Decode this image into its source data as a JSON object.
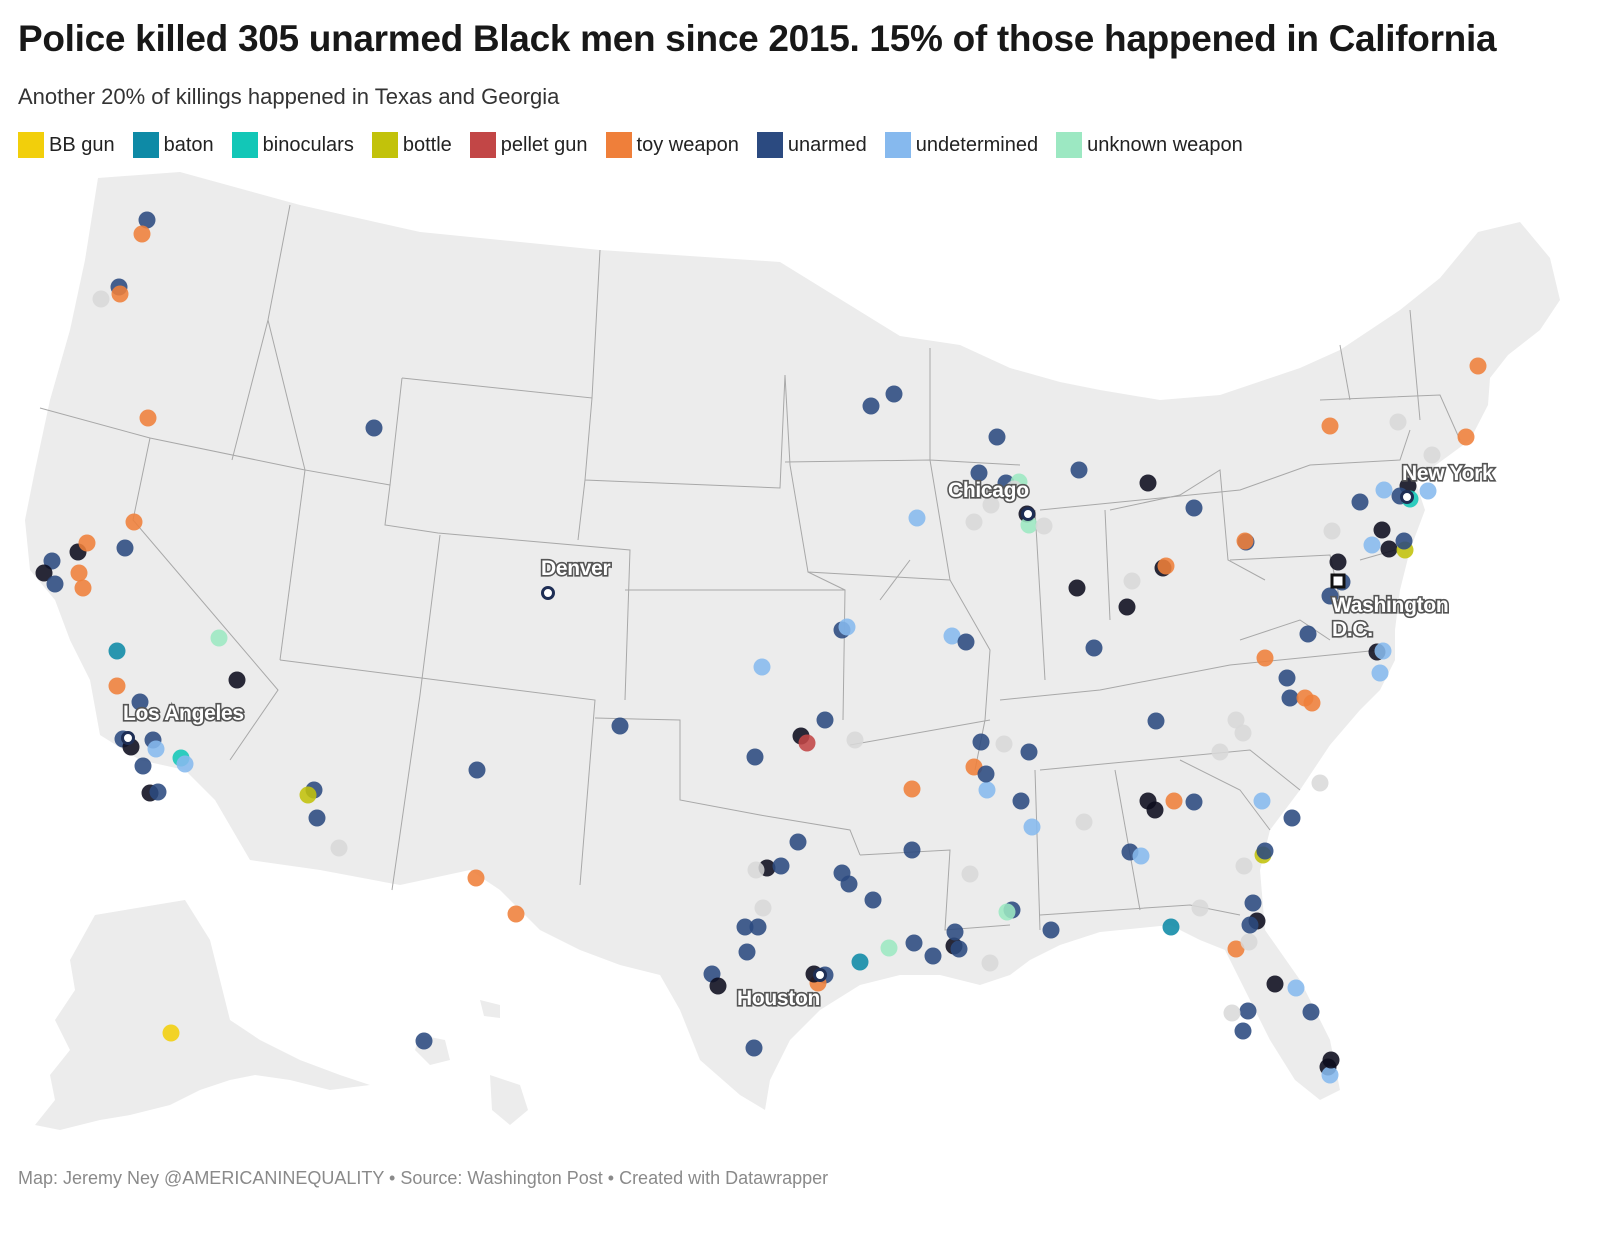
{
  "header": {
    "title": "Police killed 305 unarmed Black men since 2015. 15% of those happened in California",
    "subtitle": "Another 20% of killings happened in Texas and Georgia"
  },
  "legend": [
    {
      "label": "BB gun",
      "color": "#f2cf0b"
    },
    {
      "label": "baton",
      "color": "#0e8aa6"
    },
    {
      "label": "binoculars",
      "color": "#12c7b7"
    },
    {
      "label": "bottle",
      "color": "#c2c20a"
    },
    {
      "label": "pellet gun",
      "color": "#c24646"
    },
    {
      "label": "toy weapon",
      "color": "#ef7f3a"
    },
    {
      "label": "unarmed",
      "color": "#2b4a80"
    },
    {
      "label": "undetermined",
      "color": "#86b9ee"
    },
    {
      "label": "unknown weapon",
      "color": "#9ce8c2"
    }
  ],
  "map": {
    "cities": [
      "Chicago",
      "New York",
      "Denver",
      "Washington",
      "D.C.",
      "Los Angeles",
      "Houston"
    ],
    "base_color": "#ececec",
    "border_color": "#a8a8a8"
  },
  "footer": "Map: Jeremy Ney @AMERICANINEQUALITY • Source: Washington Post • Created with Datawrapper"
}
